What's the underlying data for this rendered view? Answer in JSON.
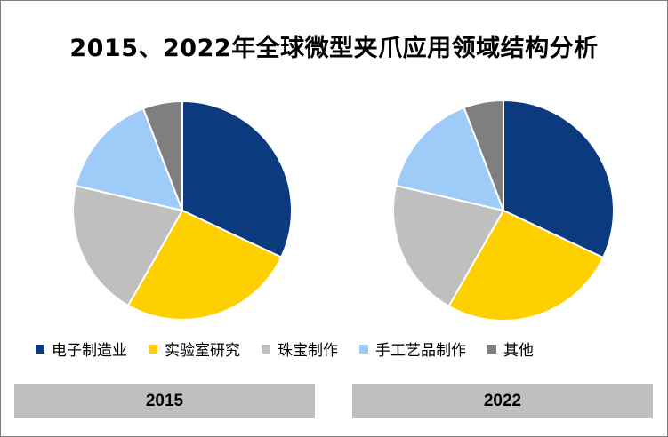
{
  "title": "2015、2022年全球微型夹爪应用领域结构分析",
  "chart_data": [
    {
      "type": "pie",
      "label": "2015",
      "categories": [
        "电子制造业",
        "实验室研究",
        "珠宝制作",
        "手工艺品制作",
        "其他"
      ],
      "values": [
        33,
        27,
        21,
        16,
        6
      ],
      "colors": [
        "#0b3a7e",
        "#ffd000",
        "#bfbfbf",
        "#9ecbf7",
        "#7f7f7f"
      ]
    },
    {
      "type": "pie",
      "label": "2022",
      "categories": [
        "电子制造业",
        "实验室研究",
        "珠宝制作",
        "手工艺品制作",
        "其他"
      ],
      "values": [
        33,
        27,
        21,
        16,
        6
      ],
      "colors": [
        "#0b3a7e",
        "#ffd000",
        "#bfbfbf",
        "#9ecbf7",
        "#7f7f7f"
      ]
    }
  ],
  "legend": {
    "position": "bottom",
    "items": [
      {
        "label": "电子制造业",
        "color": "#0b3a7e"
      },
      {
        "label": "实验室研究",
        "color": "#ffd000"
      },
      {
        "label": "珠宝制作",
        "color": "#bfbfbf"
      },
      {
        "label": "手工艺品制作",
        "color": "#9ecbf7"
      },
      {
        "label": "其他",
        "color": "#7f7f7f"
      }
    ]
  },
  "year_labels": [
    "2015",
    "2022"
  ]
}
